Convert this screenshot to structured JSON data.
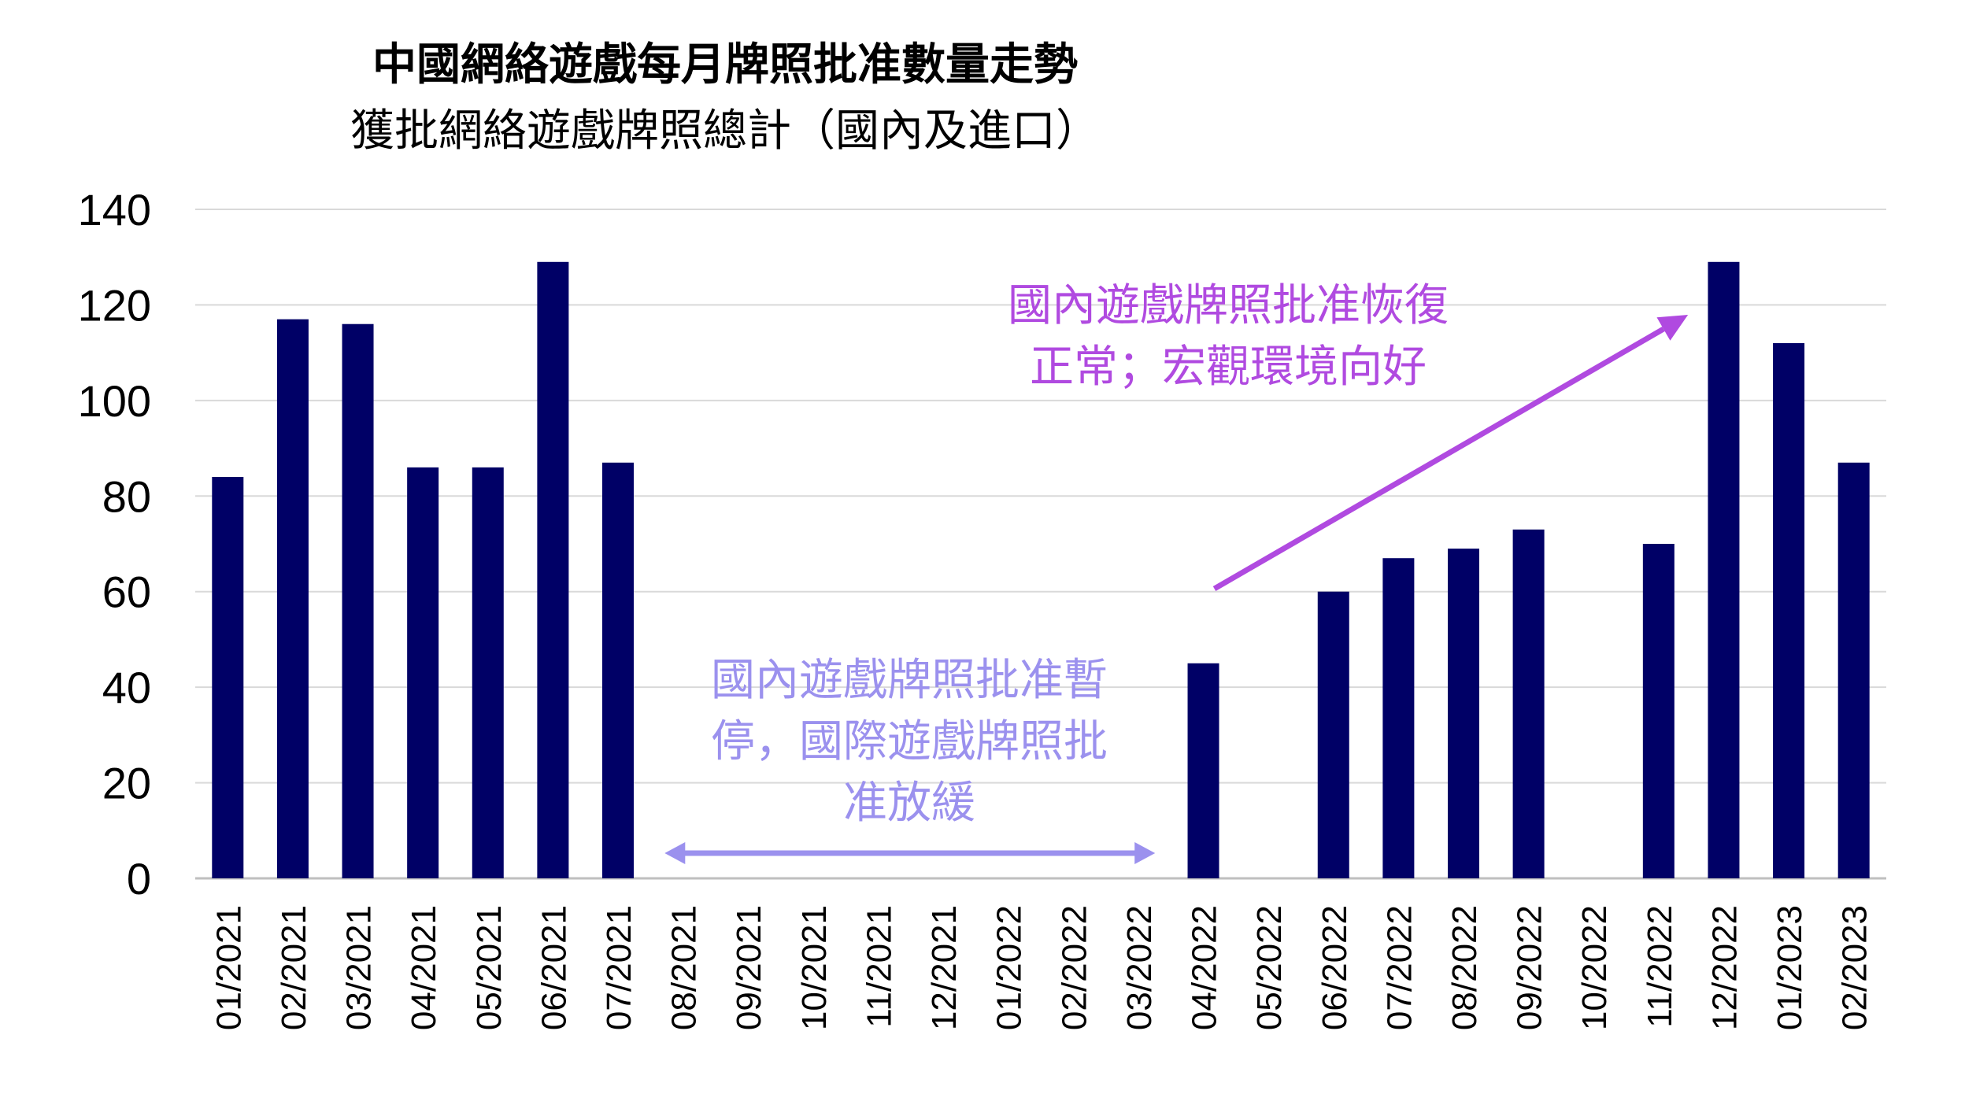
{
  "chart_data": {
    "type": "bar",
    "title": "中國網絡遊戲每月牌照批准數量走勢",
    "subtitle": "獲批網絡遊戲牌照總計（國內及進口）",
    "categories": [
      "01/2021",
      "02/2021",
      "03/2021",
      "04/2021",
      "05/2021",
      "06/2021",
      "07/2021",
      "08/2021",
      "09/2021",
      "10/2021",
      "11/2021",
      "12/2021",
      "01/2022",
      "02/2022",
      "03/2022",
      "04/2022",
      "05/2022",
      "06/2022",
      "07/2022",
      "08/2022",
      "09/2022",
      "10/2022",
      "11/2022",
      "12/2022",
      "01/2023",
      "02/2023"
    ],
    "values": [
      84,
      117,
      116,
      86,
      86,
      129,
      87,
      0,
      0,
      0,
      0,
      0,
      0,
      0,
      0,
      45,
      0,
      60,
      67,
      69,
      73,
      0,
      70,
      129,
      112,
      87
    ],
    "yticks": [
      "0",
      "20",
      "40",
      "60",
      "80",
      "100",
      "120",
      "140"
    ],
    "ylim": [
      0,
      140
    ],
    "grid": true,
    "bar_color": "#000066",
    "annotations": {
      "pause_text": "國內遊戲牌照批准暫停，國際遊戲牌照批准放緩",
      "pause_lines": [
        "國內遊戲牌照批准暫",
        "停，國際遊戲牌照批",
        "准放緩"
      ],
      "pause_color": "#9b91ee",
      "recover_text": "國內遊戲牌照批准恢復正常；宏觀環境向好",
      "recover_lines": [
        "國內遊戲牌照批准恢復",
        "正常；宏觀環境向好"
      ],
      "recover_color": "#b04ae0"
    }
  }
}
